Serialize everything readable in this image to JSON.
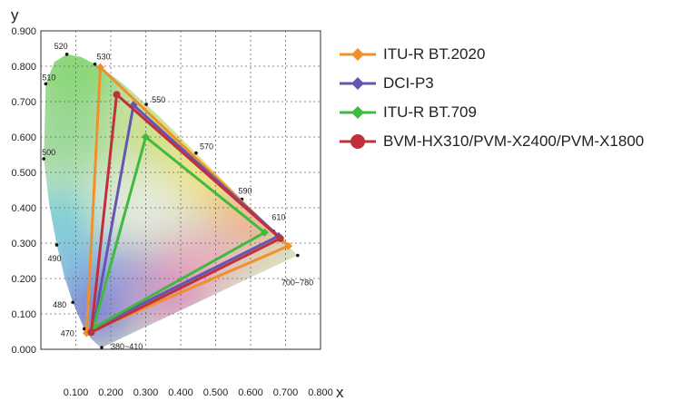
{
  "chart_data": {
    "type": "scatter",
    "xlabel": "x",
    "ylabel": "y",
    "xlim": [
      0.0,
      0.8
    ],
    "ylim": [
      0.0,
      0.9
    ],
    "x_ticks": [
      "0.100",
      "0.200",
      "0.300",
      "0.400",
      "0.500",
      "0.600",
      "0.700",
      "0.800"
    ],
    "y_ticks": [
      "0.000",
      "0.100",
      "0.200",
      "0.300",
      "0.400",
      "0.500",
      "0.600",
      "0.700",
      "0.800",
      "0.900"
    ],
    "grid": true,
    "legend_position": "right",
    "spectral_locus": {
      "points": [
        [
          0.1741,
          0.005
        ],
        [
          0.1738,
          0.0049
        ],
        [
          0.1733,
          0.0048
        ],
        [
          0.1726,
          0.0048
        ],
        [
          0.1714,
          0.0051
        ],
        [
          0.1689,
          0.0069
        ],
        [
          0.1644,
          0.0109
        ],
        [
          0.1566,
          0.0177
        ],
        [
          0.144,
          0.0297
        ],
        [
          0.1241,
          0.0578
        ],
        [
          0.0913,
          0.1327
        ],
        [
          0.0687,
          0.2007
        ],
        [
          0.0454,
          0.295
        ],
        [
          0.0235,
          0.4127
        ],
        [
          0.0082,
          0.5384
        ],
        [
          0.0139,
          0.7502
        ],
        [
          0.0389,
          0.812
        ],
        [
          0.0743,
          0.8338
        ],
        [
          0.1142,
          0.8262
        ],
        [
          0.1547,
          0.8059
        ],
        [
          0.1929,
          0.7816
        ],
        [
          0.2296,
          0.7543
        ],
        [
          0.2658,
          0.7243
        ],
        [
          0.3016,
          0.6923
        ],
        [
          0.3373,
          0.6589
        ],
        [
          0.3731,
          0.6245
        ],
        [
          0.4087,
          0.5896
        ],
        [
          0.4441,
          0.5547
        ],
        [
          0.4788,
          0.5202
        ],
        [
          0.5125,
          0.4866
        ],
        [
          0.5448,
          0.4544
        ],
        [
          0.5752,
          0.4242
        ],
        [
          0.6029,
          0.3965
        ],
        [
          0.627,
          0.3725
        ],
        [
          0.6482,
          0.3514
        ],
        [
          0.6658,
          0.334
        ],
        [
          0.6915,
          0.3083
        ],
        [
          0.714,
          0.2859
        ],
        [
          0.7347,
          0.2653
        ]
      ],
      "wavelength_labels": [
        {
          "text": "520",
          "x": 0.0743,
          "y": 0.8338
        },
        {
          "text": "530",
          "x": 0.1547,
          "y": 0.8059
        },
        {
          "text": "510",
          "x": 0.0139,
          "y": 0.7502
        },
        {
          "text": "550",
          "x": 0.3016,
          "y": 0.6923
        },
        {
          "text": "570",
          "x": 0.4441,
          "y": 0.5547
        },
        {
          "text": "500",
          "x": 0.0082,
          "y": 0.5384
        },
        {
          "text": "590",
          "x": 0.5752,
          "y": 0.4242
        },
        {
          "text": "610",
          "x": 0.6658,
          "y": 0.334
        },
        {
          "text": "490",
          "x": 0.0454,
          "y": 0.295
        },
        {
          "text": "700~780",
          "x": 0.7347,
          "y": 0.2653
        },
        {
          "text": "480",
          "x": 0.0913,
          "y": 0.1327
        },
        {
          "text": "470",
          "x": 0.1241,
          "y": 0.0578
        },
        {
          "text": "380~410",
          "x": 0.1741,
          "y": 0.005
        }
      ]
    },
    "series": [
      {
        "name": "ITU-R BT.2020",
        "color": "#f0902a",
        "marker": "diamond",
        "points": [
          [
            0.708,
            0.292
          ],
          [
            0.17,
            0.797
          ],
          [
            0.131,
            0.046
          ]
        ]
      },
      {
        "name": "DCI-P3",
        "color": "#6655b0",
        "marker": "diamond",
        "points": [
          [
            0.68,
            0.32
          ],
          [
            0.265,
            0.69
          ],
          [
            0.15,
            0.06
          ]
        ]
      },
      {
        "name": "ITU-R BT.709",
        "color": "#3fba3f",
        "marker": "diamond",
        "points": [
          [
            0.64,
            0.33
          ],
          [
            0.3,
            0.6
          ],
          [
            0.15,
            0.06
          ]
        ]
      },
      {
        "name": "BVM-HX310/PVM-X2400/PVM-X1800",
        "color": "#c0303a",
        "marker": "circle",
        "points": [
          [
            0.685,
            0.313
          ],
          [
            0.217,
            0.72
          ],
          [
            0.144,
            0.048
          ]
        ]
      }
    ]
  }
}
